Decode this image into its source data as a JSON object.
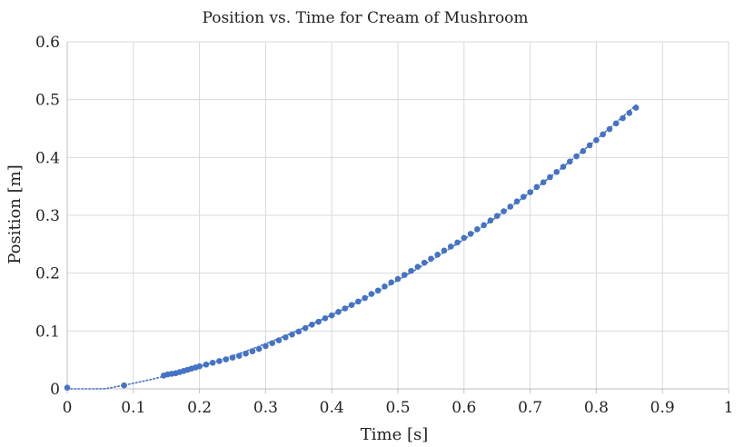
{
  "chart_data": {
    "type": "scatter",
    "title": "Position vs. Time for Cream of Mushroom",
    "xlabel": "Time [s]",
    "ylabel": "Position [m]",
    "xlim": [
      0,
      1
    ],
    "ylim": [
      0,
      0.6
    ],
    "xticks": [
      "0",
      "0.1",
      "0.2",
      "0.3",
      "0.4",
      "0.5",
      "0.6",
      "0.7",
      "0.8",
      "0.9",
      "1"
    ],
    "yticks": [
      "0",
      "0.1",
      "0.2",
      "0.3",
      "0.4",
      "0.5",
      "0.6"
    ],
    "grid": true,
    "marker_color": "#4472c4",
    "trendline": {
      "style": "dotted",
      "color": "#4472c4",
      "x_range": [
        0,
        0.86
      ]
    },
    "series": [
      {
        "x": [
          0.0,
          0.086,
          0.146,
          0.152,
          0.158,
          0.164,
          0.17,
          0.176,
          0.182,
          0.188,
          0.194,
          0.2,
          0.21,
          0.22,
          0.23,
          0.24,
          0.25,
          0.26,
          0.27,
          0.28,
          0.29,
          0.3,
          0.31,
          0.32,
          0.33,
          0.34,
          0.35,
          0.36,
          0.37,
          0.38,
          0.39,
          0.4,
          0.41,
          0.42,
          0.43,
          0.44,
          0.45,
          0.46,
          0.47,
          0.48,
          0.49,
          0.5,
          0.51,
          0.52,
          0.53,
          0.54,
          0.55,
          0.56,
          0.57,
          0.58,
          0.59,
          0.6,
          0.61,
          0.62,
          0.63,
          0.64,
          0.65,
          0.66,
          0.67,
          0.68,
          0.69,
          0.7,
          0.71,
          0.72,
          0.73,
          0.74,
          0.75,
          0.76,
          0.77,
          0.78,
          0.79,
          0.8,
          0.81,
          0.82,
          0.83,
          0.84,
          0.85,
          0.86
        ],
        "y": [
          0.002,
          0.006,
          0.023,
          0.025,
          0.026,
          0.027,
          0.029,
          0.031,
          0.033,
          0.035,
          0.037,
          0.039,
          0.042,
          0.045,
          0.048,
          0.051,
          0.054,
          0.057,
          0.061,
          0.065,
          0.069,
          0.074,
          0.079,
          0.084,
          0.089,
          0.094,
          0.099,
          0.105,
          0.111,
          0.116,
          0.122,
          0.127,
          0.133,
          0.139,
          0.145,
          0.151,
          0.157,
          0.164,
          0.17,
          0.177,
          0.184,
          0.19,
          0.197,
          0.204,
          0.211,
          0.218,
          0.225,
          0.232,
          0.239,
          0.246,
          0.253,
          0.261,
          0.268,
          0.276,
          0.283,
          0.291,
          0.299,
          0.307,
          0.315,
          0.324,
          0.332,
          0.34,
          0.349,
          0.357,
          0.366,
          0.375,
          0.384,
          0.393,
          0.402,
          0.411,
          0.421,
          0.43,
          0.44,
          0.449,
          0.459,
          0.468,
          0.477,
          0.486
        ]
      }
    ]
  }
}
